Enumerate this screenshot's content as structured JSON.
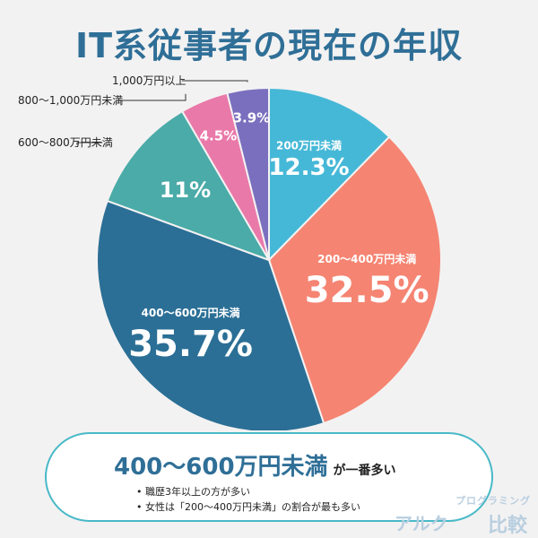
{
  "title": "IT系従事者の現在の年収",
  "chart_data": {
    "type": "pie",
    "slices": [
      {
        "label": "200万円未満",
        "value": 12.3,
        "value_label": "12.3%",
        "color": "#46b8d7"
      },
      {
        "label": "200〜400万円未満",
        "value": 32.5,
        "value_label": "32.5%",
        "color": "#f58472"
      },
      {
        "label": "400〜600万円未満",
        "value": 35.7,
        "value_label": "35.7%",
        "color": "#2b6f96"
      },
      {
        "label": "600〜800万円未満",
        "value": 11,
        "value_label": "11%",
        "color": "#4aaba8"
      },
      {
        "label": "800〜1,000万円未満",
        "value": 4.5,
        "value_label": "4.5%",
        "color": "#e979a9"
      },
      {
        "label": "1,000万円以上",
        "value": 3.9,
        "value_label": "3.9%",
        "color": "#7a6fbe"
      }
    ]
  },
  "summary": {
    "headline": "400〜600万円未満",
    "headline_suffix": "が一番多い",
    "bullets": [
      "職歴3年以上の方が多い",
      "女性は「200〜400万円未満」の割合が最も多い"
    ]
  },
  "brand": {
    "subtitle": "プログラミング",
    "mark": "アルク",
    "name": "比較"
  }
}
